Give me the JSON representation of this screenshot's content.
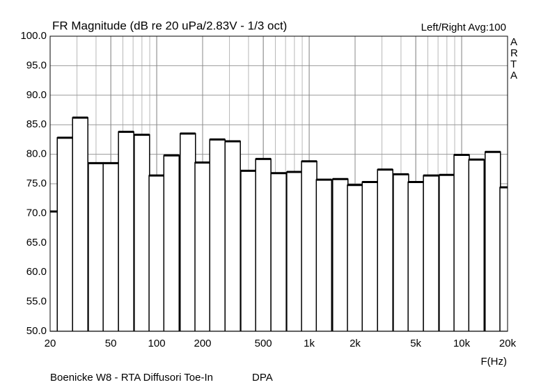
{
  "chart_data": {
    "type": "bar",
    "title": "FR Magnitude (dB re 20 uPa/2.83V - 1/3 oct)",
    "info": "Left/Right  Avg:100",
    "watermark": "ARTA",
    "x_label": "F(Hz)",
    "footer": "Boenicke W8 - RTA Diffusori Toe-In",
    "footer_right": "DPA",
    "log_x": true,
    "grid": true,
    "color": "#ffffff",
    "x": [
      20,
      25,
      31.5,
      40,
      50,
      63,
      80,
      100,
      125,
      160,
      200,
      250,
      315,
      400,
      500,
      630,
      800,
      1000,
      1250,
      1600,
      2000,
      2500,
      3150,
      4000,
      5000,
      6300,
      8000,
      10000,
      12500,
      16000,
      20000
    ],
    "values": [
      70.3,
      82.8,
      86.2,
      78.5,
      78.5,
      83.8,
      83.3,
      76.4,
      79.8,
      83.5,
      78.6,
      82.5,
      82.2,
      77.2,
      79.2,
      76.8,
      77.0,
      78.8,
      75.7,
      75.8,
      74.8,
      75.3,
      77.4,
      76.6,
      75.3,
      76.4,
      76.5,
      79.9,
      79.1,
      80.4,
      74.4
    ],
    "xlim": [
      20,
      20000
    ],
    "ylim": [
      50,
      100
    ],
    "xticks": [
      20,
      50,
      100,
      200,
      500,
      {
        "value": 1000,
        "label": "1k"
      },
      {
        "value": 2000,
        "label": "2k"
      },
      {
        "value": 5000,
        "label": "5k"
      },
      {
        "value": 10000,
        "label": "10k"
      },
      {
        "value": 20000,
        "label": "20k"
      }
    ],
    "yticks": [
      {
        "value": 50,
        "label": "50.0"
      },
      {
        "value": 55,
        "label": "55.0"
      },
      {
        "value": 60,
        "label": "60.0"
      },
      {
        "value": 65,
        "label": "65.0"
      },
      {
        "value": 70,
        "label": "70.0"
      },
      {
        "value": 75,
        "label": "75.0"
      },
      {
        "value": 80,
        "label": "80.0"
      },
      {
        "value": 85,
        "label": "85.0"
      },
      {
        "value": 90,
        "label": "90.0"
      },
      {
        "value": 95,
        "label": "95.0"
      },
      {
        "value": 100,
        "label": "100.0"
      }
    ]
  }
}
